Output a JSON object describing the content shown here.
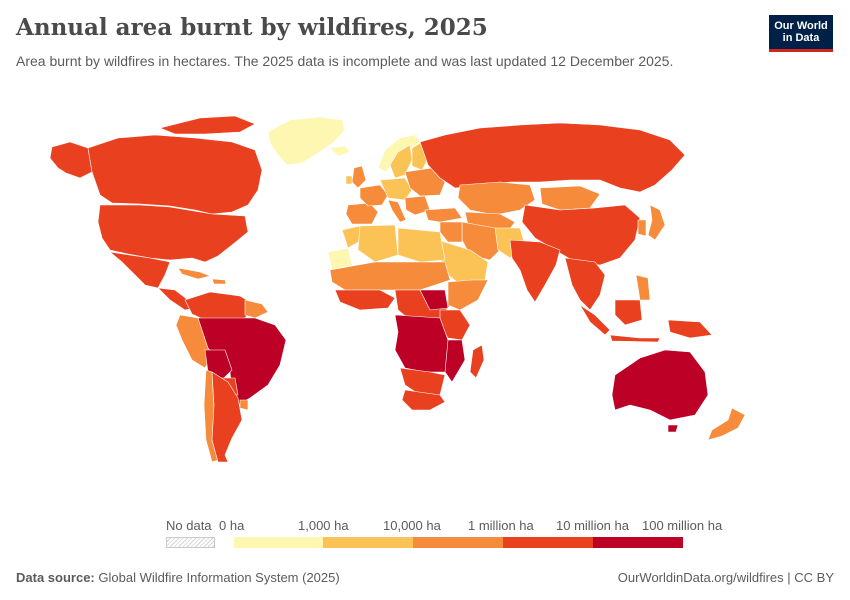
{
  "header": {
    "title": "Annual area burnt by wildfires, 2025",
    "subtitle": "Area burnt by wildfires in hectares. The 2025 data is incomplete and was last updated 12 December 2025."
  },
  "logo": {
    "line1": "Our World",
    "line2": "in Data"
  },
  "legend": {
    "no_data_label": "No data",
    "tick_labels": [
      "0 ha",
      "1,000 ha",
      "10,000 ha",
      "1 million ha",
      "10 million ha",
      "100 million ha"
    ],
    "bin_colors": [
      "#fef7b2",
      "#fbc355",
      "#f68b3c",
      "#e9411f",
      "#bd0026"
    ]
  },
  "footer": {
    "source_label": "Data source:",
    "source_text": "Global Wildfire Information System (2025)",
    "url_text": "OurWorldinData.org/wildfires | CC BY"
  },
  "map_colors": {
    "border": "#ffffff",
    "bin1": "#fef7b2",
    "bin2": "#fbc355",
    "bin3": "#f68b3c",
    "bin4": "#e9411f",
    "bin5": "#bd0026"
  }
}
